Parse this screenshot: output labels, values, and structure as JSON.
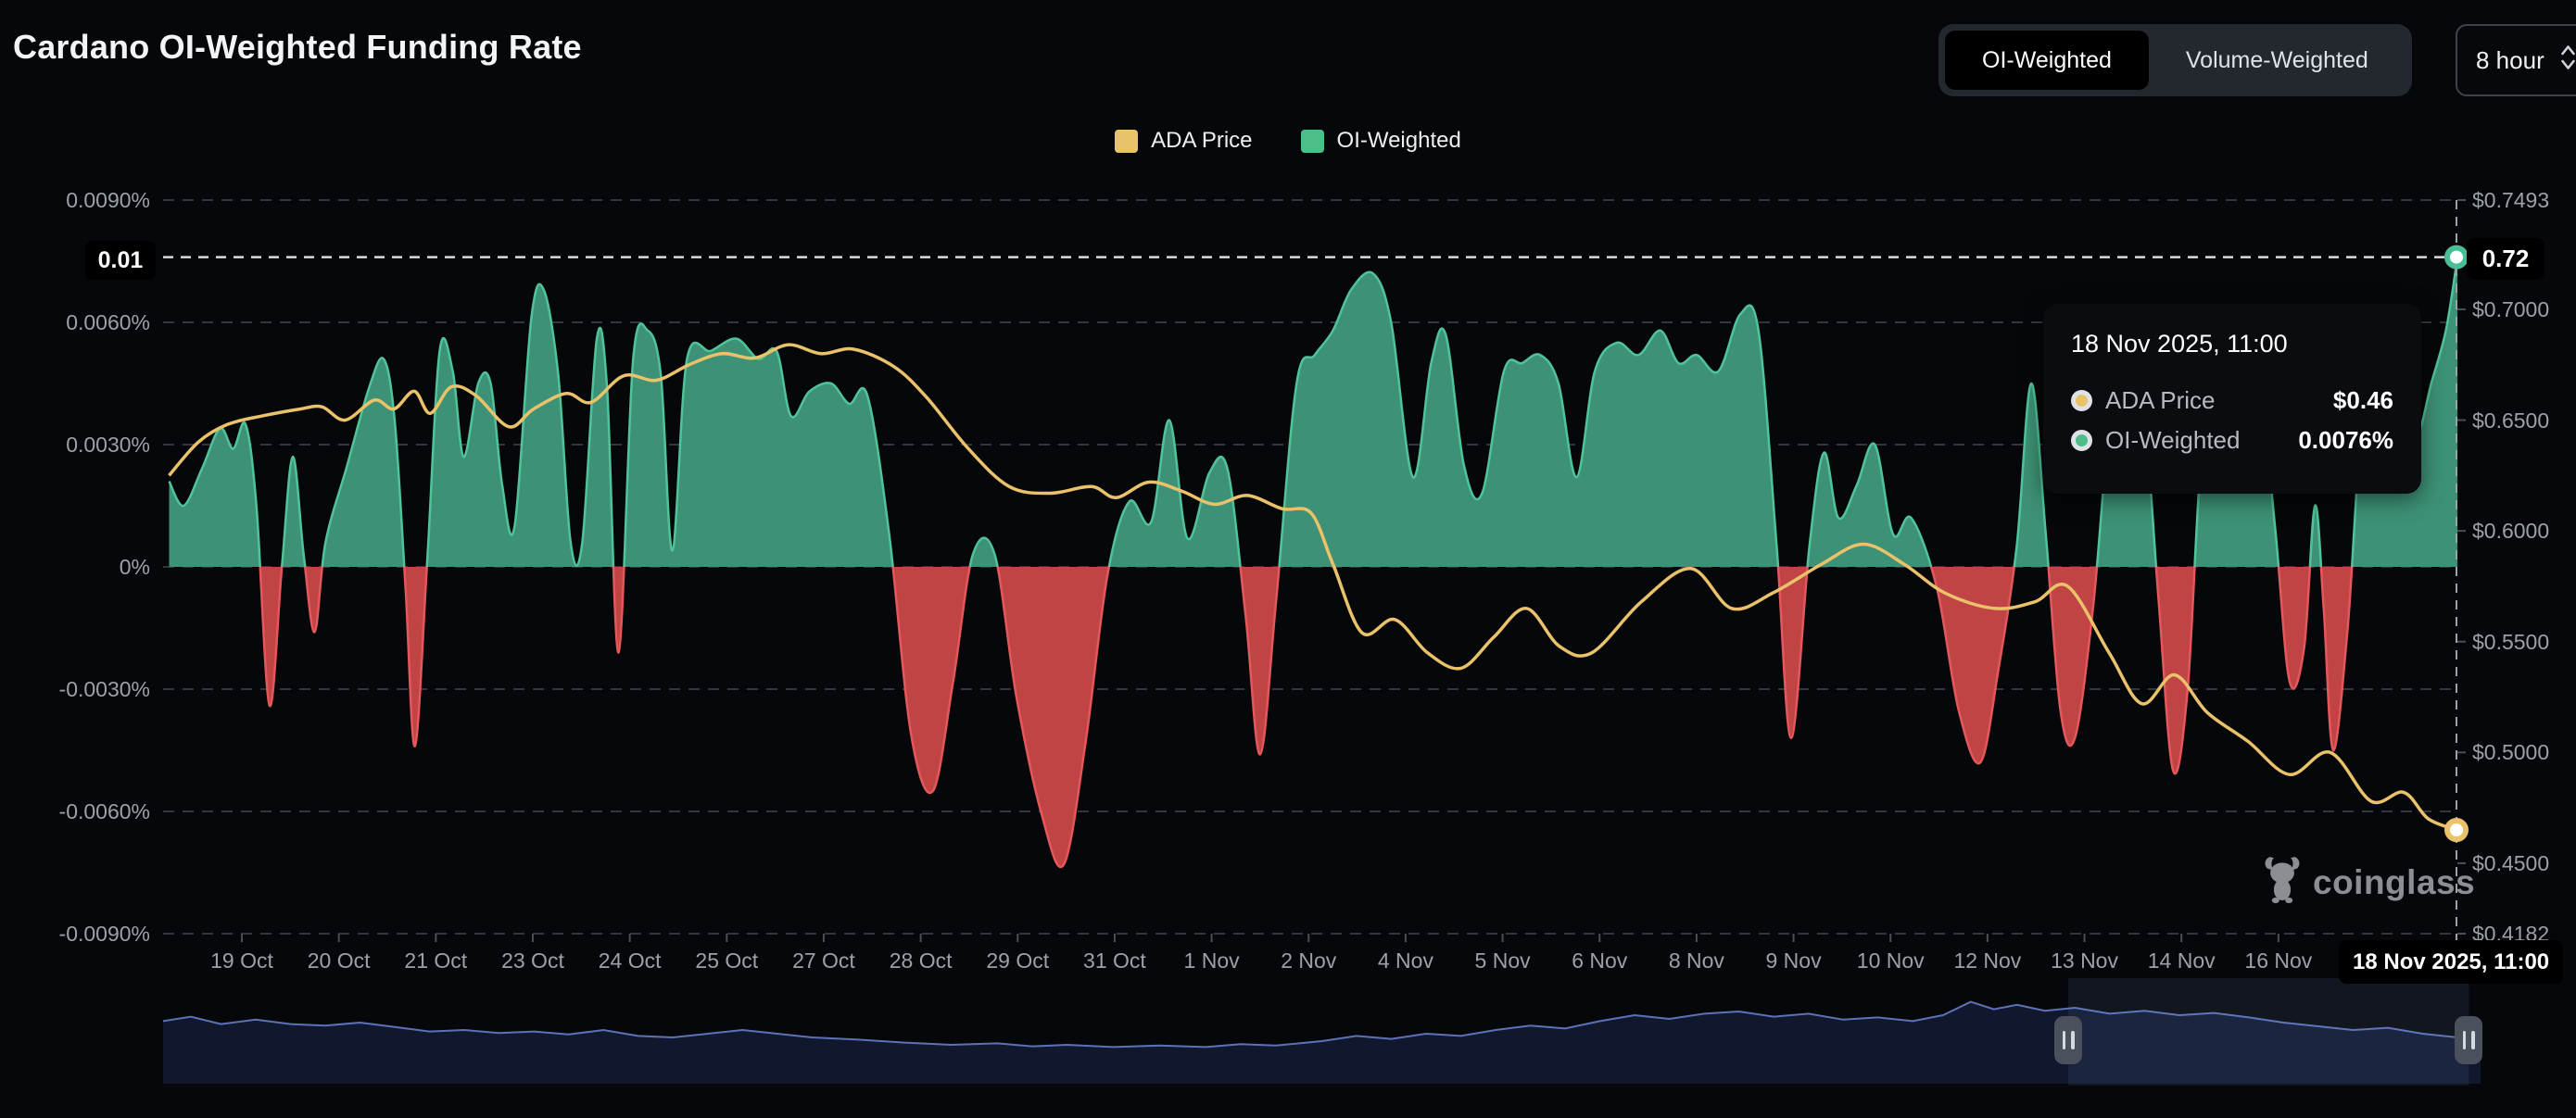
{
  "header": {
    "title": "Cardano OI-Weighted Funding Rate",
    "toggles": [
      {
        "label": "OI-Weighted",
        "selected": true
      },
      {
        "label": "Volume-Weighted",
        "selected": false
      }
    ],
    "interval": {
      "value": "8 hour"
    }
  },
  "legend": {
    "items": [
      {
        "label": "ADA Price",
        "color": "#E8C369"
      },
      {
        "label": "OI-Weighted",
        "color": "#4DBE87"
      }
    ]
  },
  "tooltip": {
    "title": "18 Nov 2025, 11:00",
    "rows": [
      {
        "label": "ADA Price",
        "value": "$0.46",
        "color": "#E8C369"
      },
      {
        "label": "OI-Weighted",
        "value": "0.0076%",
        "color": "#4DBE87"
      }
    ]
  },
  "markers": {
    "funding_label": "0.01",
    "price_label": "0.72",
    "date_label": "18 Nov 2025, 11:00"
  },
  "watermark": {
    "text": "coinglass"
  },
  "chart_data": {
    "type": "area",
    "title": "Cardano OI-Weighted Funding Rate",
    "x_axis": {
      "tick_labels": [
        "19 Oct",
        "20 Oct",
        "21 Oct",
        "23 Oct",
        "24 Oct",
        "25 Oct",
        "27 Oct",
        "28 Oct",
        "29 Oct",
        "31 Oct",
        "1 Nov",
        "2 Nov",
        "4 Nov",
        "5 Nov",
        "6 Nov",
        "8 Nov",
        "9 Nov",
        "10 Nov",
        "12 Nov",
        "13 Nov",
        "14 Nov",
        "16 Nov"
      ],
      "crosshair_label": "18 Nov 2025, 11:00",
      "unit": "days since 19 Oct 2025 00:00"
    },
    "left_axis": {
      "name": "OI-Weighted funding rate",
      "unit": "%",
      "tick_labels": [
        "0.0090%",
        "0.0060%",
        "0.0030%",
        "0%",
        "-0.0030%",
        "-0.0060%",
        "-0.0090%"
      ],
      "tick_values": [
        0.009,
        0.006,
        0.003,
        0,
        -0.003,
        -0.006,
        -0.009
      ],
      "min": -0.009,
      "max": 0.009,
      "marker": {
        "label": "0.01",
        "value": 0.0076
      }
    },
    "right_axis": {
      "name": "ADA price",
      "unit": "USD",
      "tick_labels": [
        "$0.7493",
        "$0.7000",
        "$0.6500",
        "$0.6000",
        "$0.5500",
        "$0.5000",
        "$0.4500",
        "$0.4182"
      ],
      "tick_values": [
        0.7493,
        0.7,
        0.65,
        0.6,
        0.55,
        0.5,
        0.45,
        0.4182
      ],
      "min": 0.4182,
      "max": 0.7493,
      "marker": {
        "label": "0.72",
        "value": 0.72
      }
    },
    "grid": "horizontal-dashed",
    "legend_position": "top-center",
    "series": [
      {
        "name": "OI-Weighted",
        "type": "area",
        "axis": "left",
        "positive_color": "#3D9176",
        "negative_color": "#C04446",
        "positive_line": "#4FC49B",
        "negative_line": "#E4575A",
        "end_value": 0.0076,
        "points": [
          [
            -1.0,
            0.0021
          ],
          [
            -0.8,
            0.0015
          ],
          [
            -0.55,
            0.0024
          ],
          [
            -0.3,
            0.0034
          ],
          [
            -0.12,
            0.0029
          ],
          [
            0.05,
            0.0035
          ],
          [
            0.2,
            0.0015
          ],
          [
            0.38,
            -0.0034
          ],
          [
            0.55,
            0.0
          ],
          [
            0.7,
            0.0027
          ],
          [
            0.85,
            0.0003
          ],
          [
            1.0,
            -0.0016
          ],
          [
            1.15,
            0.0006
          ],
          [
            1.45,
            0.0025
          ],
          [
            1.75,
            0.0044
          ],
          [
            1.95,
            0.0051
          ],
          [
            2.1,
            0.0036
          ],
          [
            2.25,
            -0.0005
          ],
          [
            2.38,
            -0.0044
          ],
          [
            2.55,
            0.0002
          ],
          [
            2.72,
            0.0053
          ],
          [
            2.9,
            0.0048
          ],
          [
            3.05,
            0.0027
          ],
          [
            3.25,
            0.0045
          ],
          [
            3.42,
            0.0045
          ],
          [
            3.58,
            0.002
          ],
          [
            3.75,
            0.001
          ],
          [
            3.98,
            0.0061
          ],
          [
            4.15,
            0.0068
          ],
          [
            4.35,
            0.0047
          ],
          [
            4.52,
            0.0006
          ],
          [
            4.68,
            0.0006
          ],
          [
            4.88,
            0.0056
          ],
          [
            5.02,
            0.0044
          ],
          [
            5.18,
            -0.0021
          ],
          [
            5.38,
            0.0051
          ],
          [
            5.58,
            0.0058
          ],
          [
            5.76,
            0.0047
          ],
          [
            5.92,
            0.0004
          ],
          [
            6.12,
            0.0051
          ],
          [
            6.45,
            0.0053
          ],
          [
            6.8,
            0.0056
          ],
          [
            7.1,
            0.0051
          ],
          [
            7.35,
            0.0053
          ],
          [
            7.55,
            0.0037
          ],
          [
            7.8,
            0.0043
          ],
          [
            8.1,
            0.0045
          ],
          [
            8.35,
            0.004
          ],
          [
            8.6,
            0.0042
          ],
          [
            8.9,
            0.0008
          ],
          [
            9.2,
            -0.0041
          ],
          [
            9.5,
            -0.0055
          ],
          [
            9.78,
            -0.0028
          ],
          [
            10.05,
            0.0003
          ],
          [
            10.35,
            0.0003
          ],
          [
            10.65,
            -0.0032
          ],
          [
            11.0,
            -0.0061
          ],
          [
            11.3,
            -0.0073
          ],
          [
            11.6,
            -0.0043
          ],
          [
            11.9,
            -0.0002
          ],
          [
            12.2,
            0.0016
          ],
          [
            12.5,
            0.0011
          ],
          [
            12.75,
            0.0036
          ],
          [
            13.0,
            0.0007
          ],
          [
            13.3,
            0.0023
          ],
          [
            13.55,
            0.0024
          ],
          [
            13.8,
            -0.0012
          ],
          [
            14.0,
            -0.0046
          ],
          [
            14.22,
            -0.0008
          ],
          [
            14.5,
            0.0045
          ],
          [
            14.75,
            0.0052
          ],
          [
            15.0,
            0.0058
          ],
          [
            15.25,
            0.0068
          ],
          [
            15.55,
            0.0072
          ],
          [
            15.8,
            0.006
          ],
          [
            16.1,
            0.0022
          ],
          [
            16.35,
            0.005
          ],
          [
            16.55,
            0.0057
          ],
          [
            16.8,
            0.0025
          ],
          [
            17.05,
            0.0018
          ],
          [
            17.35,
            0.0048
          ],
          [
            17.6,
            0.005
          ],
          [
            17.85,
            0.0052
          ],
          [
            18.1,
            0.0045
          ],
          [
            18.35,
            0.0022
          ],
          [
            18.6,
            0.0048
          ],
          [
            18.9,
            0.0055
          ],
          [
            19.2,
            0.0052
          ],
          [
            19.5,
            0.0058
          ],
          [
            19.75,
            0.005
          ],
          [
            20.0,
            0.0052
          ],
          [
            20.3,
            0.0048
          ],
          [
            20.6,
            0.0062
          ],
          [
            20.85,
            0.0058
          ],
          [
            21.1,
            0.0005
          ],
          [
            21.3,
            -0.0042
          ],
          [
            21.55,
            0.0005
          ],
          [
            21.75,
            0.0028
          ],
          [
            21.95,
            0.0012
          ],
          [
            22.2,
            0.002
          ],
          [
            22.45,
            0.003
          ],
          [
            22.7,
            0.0008
          ],
          [
            22.95,
            0.0012
          ],
          [
            23.3,
            -0.0005
          ],
          [
            23.6,
            -0.0035
          ],
          [
            23.9,
            -0.0048
          ],
          [
            24.15,
            -0.0025
          ],
          [
            24.4,
            0.0005
          ],
          [
            24.6,
            0.0045
          ],
          [
            24.8,
            0.0008
          ],
          [
            25.0,
            -0.0035
          ],
          [
            25.2,
            -0.0042
          ],
          [
            25.45,
            -0.001
          ],
          [
            25.7,
            0.0038
          ],
          [
            25.95,
            0.0042
          ],
          [
            26.15,
            0.0038
          ],
          [
            26.35,
            -0.0008
          ],
          [
            26.55,
            -0.005
          ],
          [
            26.75,
            -0.003
          ],
          [
            26.95,
            0.003
          ],
          [
            27.2,
            0.0048
          ],
          [
            27.45,
            0.004
          ],
          [
            27.7,
            0.005
          ],
          [
            27.95,
            0.001
          ],
          [
            28.15,
            -0.0028
          ],
          [
            28.35,
            -0.002
          ],
          [
            28.5,
            0.0015
          ],
          [
            28.62,
            -0.001
          ],
          [
            28.75,
            -0.0045
          ],
          [
            28.95,
            -0.0015
          ],
          [
            29.15,
            0.0035
          ],
          [
            29.4,
            0.0042
          ],
          [
            29.65,
            0.0035
          ],
          [
            29.9,
            0.0032
          ],
          [
            30.1,
            0.0045
          ],
          [
            30.3,
            0.0058
          ],
          [
            30.46,
            0.0076
          ]
        ]
      },
      {
        "name": "ADA Price",
        "type": "line",
        "axis": "right",
        "color": "#EAC26A",
        "end_value": 0.46,
        "points": [
          [
            -1.0,
            0.625
          ],
          [
            -0.6,
            0.64
          ],
          [
            -0.2,
            0.648
          ],
          [
            0.3,
            0.652
          ],
          [
            0.8,
            0.655
          ],
          [
            1.1,
            0.656
          ],
          [
            1.42,
            0.65
          ],
          [
            1.82,
            0.659
          ],
          [
            2.09,
            0.655
          ],
          [
            2.37,
            0.663
          ],
          [
            2.59,
            0.653
          ],
          [
            2.88,
            0.665
          ],
          [
            3.22,
            0.661
          ],
          [
            3.67,
            0.647
          ],
          [
            4.01,
            0.655
          ],
          [
            4.46,
            0.662
          ],
          [
            4.8,
            0.658
          ],
          [
            5.25,
            0.67
          ],
          [
            5.7,
            0.668
          ],
          [
            6.15,
            0.675
          ],
          [
            6.6,
            0.68
          ],
          [
            7.05,
            0.678
          ],
          [
            7.51,
            0.684
          ],
          [
            7.96,
            0.68
          ],
          [
            8.41,
            0.682
          ],
          [
            8.97,
            0.674
          ],
          [
            9.42,
            0.66
          ],
          [
            9.99,
            0.637
          ],
          [
            10.55,
            0.62
          ],
          [
            11.11,
            0.617
          ],
          [
            11.68,
            0.62
          ],
          [
            12.02,
            0.615
          ],
          [
            12.47,
            0.622
          ],
          [
            12.92,
            0.618
          ],
          [
            13.37,
            0.612
          ],
          [
            13.82,
            0.616
          ],
          [
            14.3,
            0.61
          ],
          [
            14.7,
            0.608
          ],
          [
            15.0,
            0.585
          ],
          [
            15.4,
            0.554
          ],
          [
            15.85,
            0.56
          ],
          [
            16.3,
            0.545
          ],
          [
            16.76,
            0.538
          ],
          [
            17.21,
            0.552
          ],
          [
            17.66,
            0.565
          ],
          [
            18.11,
            0.548
          ],
          [
            18.56,
            0.545
          ],
          [
            19.24,
            0.568
          ],
          [
            19.92,
            0.583
          ],
          [
            20.48,
            0.565
          ],
          [
            21.05,
            0.572
          ],
          [
            21.72,
            0.585
          ],
          [
            22.29,
            0.594
          ],
          [
            22.85,
            0.585
          ],
          [
            23.41,
            0.572
          ],
          [
            24.09,
            0.565
          ],
          [
            24.65,
            0.568
          ],
          [
            25.1,
            0.575
          ],
          [
            25.67,
            0.545
          ],
          [
            26.12,
            0.522
          ],
          [
            26.57,
            0.535
          ],
          [
            27.02,
            0.518
          ],
          [
            27.58,
            0.505
          ],
          [
            28.15,
            0.49
          ],
          [
            28.71,
            0.5
          ],
          [
            29.27,
            0.478
          ],
          [
            29.72,
            0.482
          ],
          [
            30.06,
            0.47
          ],
          [
            30.46,
            0.465
          ]
        ]
      }
    ],
    "crosshair": {
      "time": "18 Nov 2025, 11:00",
      "funding_value_pct": 0.0076,
      "price_value_usd": 0.46
    },
    "navigator": {
      "selection": [
        0.822,
        0.995
      ],
      "values": [
        [
          0.0,
          0.38
        ],
        [
          0.012,
          0.32
        ],
        [
          0.025,
          0.42
        ],
        [
          0.04,
          0.36
        ],
        [
          0.055,
          0.42
        ],
        [
          0.07,
          0.44
        ],
        [
          0.085,
          0.4
        ],
        [
          0.1,
          0.46
        ],
        [
          0.115,
          0.52
        ],
        [
          0.13,
          0.5
        ],
        [
          0.145,
          0.54
        ],
        [
          0.16,
          0.52
        ],
        [
          0.175,
          0.56
        ],
        [
          0.19,
          0.5
        ],
        [
          0.205,
          0.58
        ],
        [
          0.22,
          0.6
        ],
        [
          0.235,
          0.55
        ],
        [
          0.25,
          0.5
        ],
        [
          0.265,
          0.55
        ],
        [
          0.28,
          0.6
        ],
        [
          0.3,
          0.63
        ],
        [
          0.32,
          0.67
        ],
        [
          0.34,
          0.7
        ],
        [
          0.36,
          0.68
        ],
        [
          0.375,
          0.72
        ],
        [
          0.39,
          0.7
        ],
        [
          0.41,
          0.73
        ],
        [
          0.43,
          0.71
        ],
        [
          0.45,
          0.73
        ],
        [
          0.465,
          0.69
        ],
        [
          0.48,
          0.71
        ],
        [
          0.5,
          0.65
        ],
        [
          0.515,
          0.58
        ],
        [
          0.53,
          0.62
        ],
        [
          0.545,
          0.55
        ],
        [
          0.56,
          0.58
        ],
        [
          0.575,
          0.5
        ],
        [
          0.59,
          0.44
        ],
        [
          0.605,
          0.48
        ],
        [
          0.62,
          0.38
        ],
        [
          0.635,
          0.3
        ],
        [
          0.65,
          0.35
        ],
        [
          0.665,
          0.28
        ],
        [
          0.68,
          0.25
        ],
        [
          0.695,
          0.32
        ],
        [
          0.71,
          0.28
        ],
        [
          0.725,
          0.36
        ],
        [
          0.74,
          0.33
        ],
        [
          0.755,
          0.38
        ],
        [
          0.768,
          0.3
        ],
        [
          0.78,
          0.12
        ],
        [
          0.79,
          0.22
        ],
        [
          0.8,
          0.16
        ],
        [
          0.812,
          0.24
        ],
        [
          0.825,
          0.2
        ],
        [
          0.84,
          0.28
        ],
        [
          0.855,
          0.24
        ],
        [
          0.87,
          0.3
        ],
        [
          0.885,
          0.27
        ],
        [
          0.9,
          0.33
        ],
        [
          0.915,
          0.4
        ],
        [
          0.93,
          0.45
        ],
        [
          0.945,
          0.5
        ],
        [
          0.96,
          0.47
        ],
        [
          0.975,
          0.55
        ],
        [
          0.99,
          0.6
        ],
        [
          1.0,
          0.62
        ]
      ]
    }
  }
}
